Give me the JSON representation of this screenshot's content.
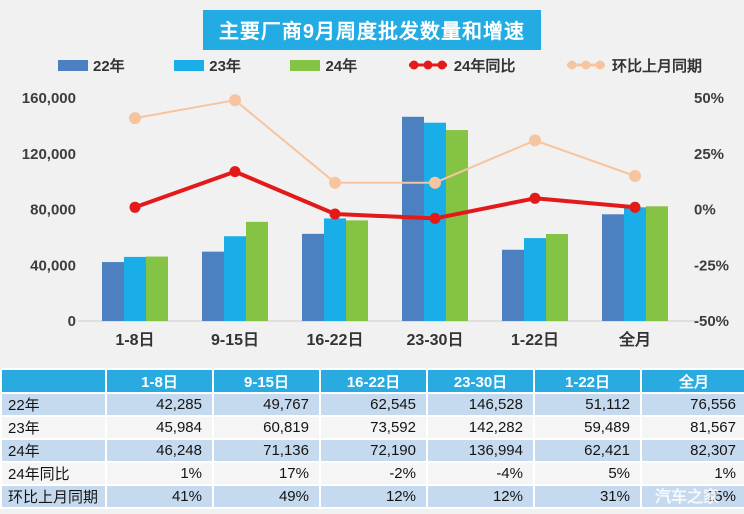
{
  "title": "主要厂商9月周度批发数量和增速",
  "watermark": "汽车之家",
  "colors": {
    "accent_cyan": "#22ace3",
    "bar_22": "#4c80c0",
    "bar_23": "#1aaee8",
    "bar_24": "#85c344",
    "line_yoy": "#e31a1a",
    "line_mom": "#f6c59f",
    "table_header_bg": "#29abe2",
    "row_blue": "#c6daef",
    "row_light": "#f5f5f6",
    "chart_bg": "#f1f1f2",
    "axis_text": "#3d3d3d"
  },
  "legend": {
    "items": [
      {
        "label": "22年",
        "marker": "rect",
        "color": "#4c80c0"
      },
      {
        "label": "23年",
        "marker": "rect",
        "color": "#1aaee8"
      },
      {
        "label": "24年",
        "marker": "rect",
        "color": "#85c344"
      },
      {
        "label": "24年同比",
        "marker": "line-dots",
        "color": "#e31a1a"
      },
      {
        "label": "环比上月同期",
        "marker": "line-dots",
        "color": "#f6c59f"
      }
    ]
  },
  "chart_data": {
    "type": "bar",
    "subtype": "grouped-bars-with-lines",
    "title": "主要厂商9月周度批发数量和增速",
    "categories": [
      "1-8日",
      "9-15日",
      "16-22日",
      "23-30日",
      "1-22日",
      "全月"
    ],
    "series": [
      {
        "name": "22年",
        "type": "bar",
        "axis": "left",
        "color": "#4c80c0",
        "values": [
          42285,
          49767,
          62545,
          146528,
          51112,
          76556
        ]
      },
      {
        "name": "23年",
        "type": "bar",
        "axis": "left",
        "color": "#1aaee8",
        "values": [
          45984,
          60819,
          73592,
          142282,
          59489,
          81567
        ]
      },
      {
        "name": "24年",
        "type": "bar",
        "axis": "left",
        "color": "#85c344",
        "values": [
          46248,
          71136,
          72190,
          136994,
          62421,
          82307
        ]
      },
      {
        "name": "24年同比",
        "type": "line",
        "axis": "right",
        "color": "#e31a1a",
        "marker_radius": 5.5,
        "stroke_width": 4,
        "values": [
          1,
          17,
          -2,
          -4,
          5,
          1
        ]
      },
      {
        "name": "环比上月同期",
        "type": "line",
        "axis": "right",
        "color": "#f6c59f",
        "marker_radius": 6,
        "stroke_width": 2,
        "values": [
          41,
          49,
          12,
          12,
          31,
          15
        ]
      }
    ],
    "y_left": {
      "min": 0,
      "max": 160000,
      "tick_values": [
        0,
        40000,
        80000,
        120000,
        160000
      ],
      "tick_labels": [
        "0",
        "40,000",
        "80,000",
        "120,000",
        "160,000"
      ]
    },
    "y_right": {
      "min": -50,
      "max": 50,
      "tick_values": [
        -50,
        -25,
        0,
        25,
        50
      ],
      "tick_labels": [
        "-50%",
        "-25%",
        "0%",
        "25%",
        "50%"
      ]
    },
    "grid": "baseline-only",
    "legend_position": "top"
  },
  "table": {
    "columns": [
      "1-8日",
      "9-15日",
      "16-22日",
      "23-30日",
      "1-22日",
      "全月"
    ],
    "rows": [
      {
        "label": "22年",
        "values": [
          "42,285",
          "49,767",
          "62,545",
          "146,528",
          "51,112",
          "76,556"
        ]
      },
      {
        "label": "23年",
        "values": [
          "45,984",
          "60,819",
          "73,592",
          "142,282",
          "59,489",
          "81,567"
        ]
      },
      {
        "label": "24年",
        "values": [
          "46,248",
          "71,136",
          "72,190",
          "136,994",
          "62,421",
          "82,307"
        ]
      },
      {
        "label": "24年同比",
        "values": [
          "1%",
          "17%",
          "-2%",
          "-4%",
          "5%",
          "1%"
        ]
      },
      {
        "label": "环比上月同期",
        "values": [
          "41%",
          "49%",
          "12%",
          "12%",
          "31%",
          "15%"
        ]
      }
    ]
  }
}
